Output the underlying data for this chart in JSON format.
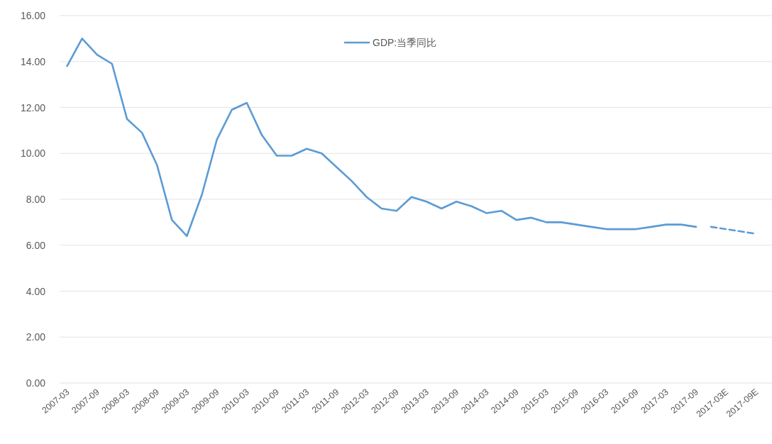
{
  "chart_data": {
    "type": "line",
    "categories": [
      "2007-03",
      null,
      "2007-09",
      null,
      "2008-03",
      null,
      "2008-09",
      null,
      "2009-03",
      null,
      "2009-09",
      null,
      "2010-03",
      null,
      "2010-09",
      null,
      "2011-03",
      null,
      "2011-09",
      null,
      "2012-03",
      null,
      "2012-09",
      null,
      "2013-03",
      null,
      "2013-09",
      null,
      "2014-03",
      null,
      "2014-09",
      null,
      "2015-03",
      null,
      "2015-09",
      null,
      "2016-03",
      null,
      "2016-09",
      null,
      "2017-03",
      null,
      "2017-09",
      null,
      "2017-03E",
      null,
      "2017-09E"
    ],
    "series": [
      {
        "name": "GDP:当季同比",
        "color": "#5b9bd5",
        "line_style": "solid",
        "values": [
          13.8,
          15.0,
          14.3,
          13.9,
          11.5,
          10.9,
          9.5,
          7.1,
          6.4,
          8.2,
          10.6,
          11.9,
          12.2,
          10.8,
          9.9,
          9.9,
          10.2,
          10.0,
          9.4,
          8.8,
          8.1,
          7.6,
          7.5,
          8.1,
          7.9,
          7.6,
          7.9,
          7.7,
          7.4,
          7.5,
          7.1,
          7.2,
          7.0,
          7.0,
          6.9,
          6.8,
          6.7,
          6.7,
          6.7,
          6.8,
          6.9,
          6.9,
          6.8,
          null,
          null,
          null,
          null
        ]
      },
      {
        "color": "#5b9bd5",
        "line_style": "dashed",
        "values": [
          null,
          null,
          null,
          null,
          null,
          null,
          null,
          null,
          null,
          null,
          null,
          null,
          null,
          null,
          null,
          null,
          null,
          null,
          null,
          null,
          null,
          null,
          null,
          null,
          null,
          null,
          null,
          null,
          null,
          null,
          null,
          null,
          null,
          null,
          null,
          null,
          null,
          null,
          null,
          null,
          null,
          null,
          null,
          6.8,
          6.7,
          6.6,
          6.5
        ]
      }
    ],
    "ylim": [
      0,
      16
    ],
    "yticks": [
      {
        "value": 0,
        "label": "0.00"
      },
      {
        "value": 2,
        "label": "2.00"
      },
      {
        "value": 4,
        "label": "4.00"
      },
      {
        "value": 6,
        "label": "6.00"
      },
      {
        "value": 8,
        "label": "8.00"
      },
      {
        "value": 10,
        "label": "10.00"
      },
      {
        "value": 12,
        "label": "12.00"
      },
      {
        "value": 14,
        "label": "14.00"
      },
      {
        "value": 16,
        "label": "16.00"
      }
    ],
    "grid": "y",
    "legend": "top"
  }
}
